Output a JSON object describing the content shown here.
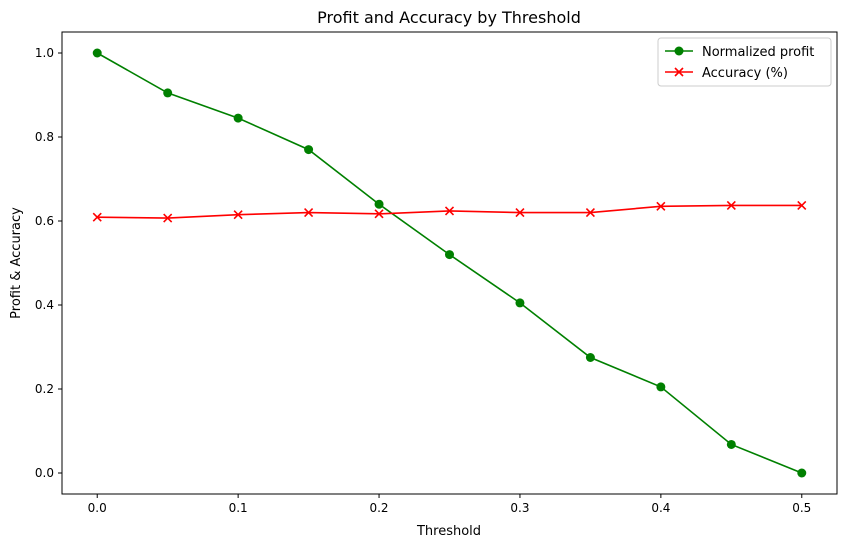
{
  "chart_data": {
    "type": "line",
    "title": "Profit and Accuracy by Threshold",
    "xlabel": "Threshold",
    "ylabel": "Profit & Accuracy",
    "x": [
      0.0,
      0.05,
      0.1,
      0.15,
      0.2,
      0.25,
      0.3,
      0.35,
      0.4,
      0.45,
      0.5
    ],
    "xlim": [
      -0.025,
      0.525
    ],
    "ylim": [
      -0.05,
      1.05
    ],
    "xticks": [
      "0.0",
      "0.1",
      "0.2",
      "0.3",
      "0.4",
      "0.5"
    ],
    "yticks": [
      "0.0",
      "0.2",
      "0.4",
      "0.6",
      "0.8",
      "1.0"
    ],
    "grid": false,
    "legend_position": "top-right",
    "series": [
      {
        "name": "Normalized profit",
        "color": "#008000",
        "marker": "circle",
        "values": [
          1.0,
          0.905,
          0.845,
          0.77,
          0.64,
          0.52,
          0.405,
          0.275,
          0.205,
          0.068,
          0.0
        ]
      },
      {
        "name": "Accuracy (%)",
        "color": "#ff0000",
        "marker": "x",
        "values": [
          0.609,
          0.607,
          0.615,
          0.62,
          0.617,
          0.624,
          0.62,
          0.62,
          0.635,
          0.637,
          0.637
        ]
      }
    ]
  }
}
